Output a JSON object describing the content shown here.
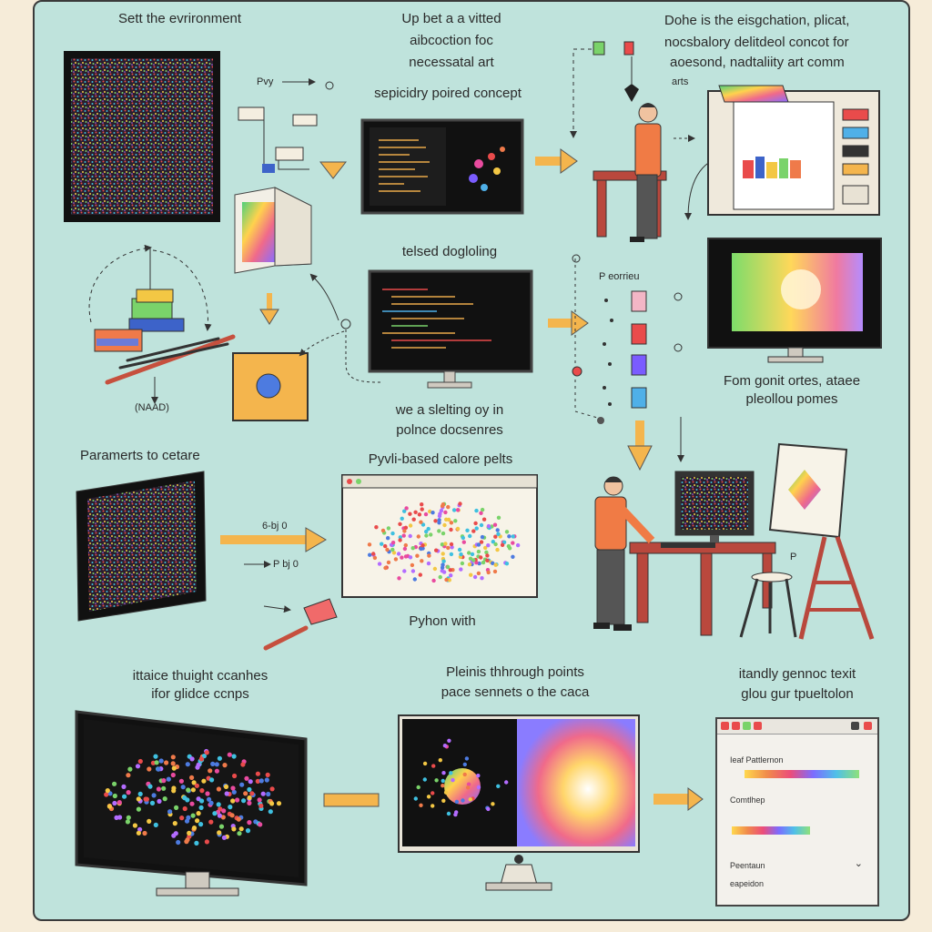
{
  "steps": {
    "setup": "Sett the evrironment",
    "concept": [
      "Up bet a a vitted",
      "aibcoction foc",
      "necessatal art"
    ],
    "concept_sub": "sepicidry poired concept",
    "goal": [
      "Dohe is the eisgchation,  plicat,",
      "nocsbalory delitdeol concot for",
      "aoesond, nadtaliity art comm",
      "arts"
    ],
    "label_pvy": "Pvy",
    "coding": "telsed dogloling",
    "coding_sub": [
      "we a slelting oy in",
      "polnce docsenres"
    ],
    "handle": "(NAAD)",
    "sort_head": "P eorrieu",
    "result": [
      "Fom gonit ortes, ataee",
      "pleollou pomes"
    ],
    "params": "Paramerts to cetare",
    "python_colors": "Pyvli-based calore pelts",
    "arrow_a": "6-bj 0",
    "arrow_b": "P bj 0",
    "python_with": "Pyhon with",
    "easel_mark": "P",
    "thought": [
      "ittaice thuight ccanhes",
      "ifor glidce ccnps"
    ],
    "plot": [
      "Pleinis thhrough points",
      "pace sennets o the caca"
    ],
    "generate": [
      "itandly gennoc texit",
      "glou gur tpueltolon"
    ]
  },
  "app_window": {
    "field1_label": "Ieaf Pattlernon",
    "field2_label": "Comtlhep",
    "field3_label": "Peentaun",
    "field3_value": "eapeidon",
    "dropdown_icon": "chevron-down-icon"
  },
  "colors": {
    "panel": "#bfe3dc",
    "page": "#f6ecd9",
    "arrow": "#f4b54d",
    "person_shirt": "#f07b45",
    "desk": "#b9483d"
  }
}
